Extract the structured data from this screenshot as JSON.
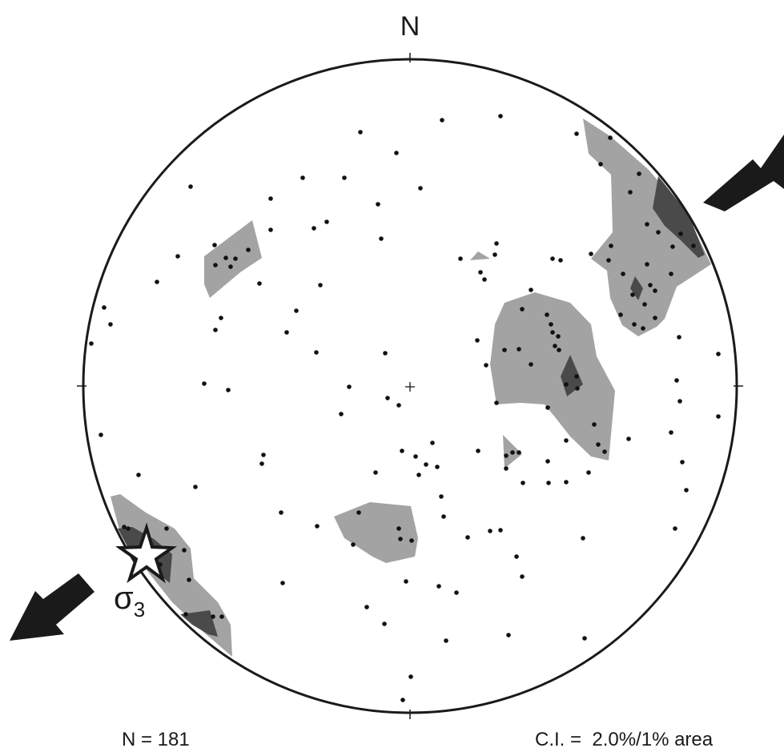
{
  "north_label": "N",
  "sigma_label": "σ",
  "sigma_subscript": "3",
  "n_text": "N = 181",
  "ci_text": "C.I. =  2.0%/1% area",
  "colors": {
    "outline": "#1a1a1a",
    "contour_light": "#a3a3a3",
    "contour_dark": "#4a4a4a",
    "arrow": "#1a1a1a",
    "poles": "#111111"
  }
}
